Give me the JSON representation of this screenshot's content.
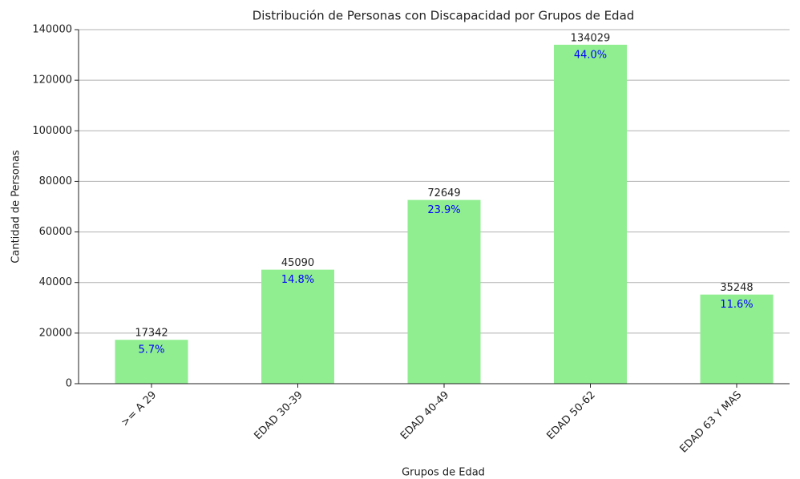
{
  "chart_data": {
    "type": "bar",
    "title": "Distribución de Personas con Discapacidad por Grupos de Edad",
    "xlabel": "Grupos de Edad",
    "ylabel": "Cantidad de Personas",
    "categories": [
      ">= A 29",
      "EDAD 30-39",
      "EDAD 40-49",
      "EDAD 50-62",
      "EDAD 63 Y MAS"
    ],
    "values": [
      17342,
      45090,
      72649,
      134029,
      35248
    ],
    "share_labels": [
      "5.7%",
      "14.8%",
      "23.9%",
      "44.0%",
      "11.6%"
    ],
    "color": "#90ee90",
    "share_color": "#0000ff",
    "ylim": [
      0,
      140000
    ],
    "yticks": [
      0,
      20000,
      40000,
      60000,
      80000,
      100000,
      120000,
      140000
    ],
    "grid": true
  }
}
